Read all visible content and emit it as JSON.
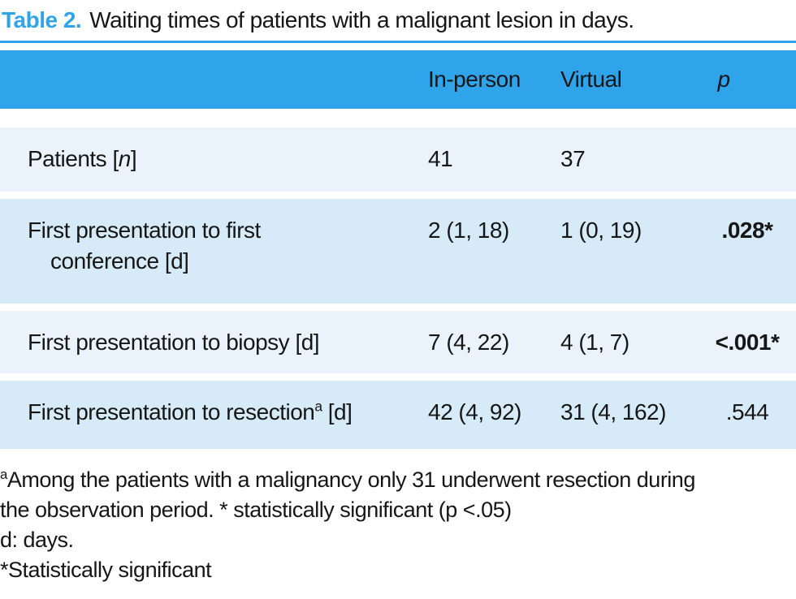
{
  "title": {
    "label": "Table 2.",
    "text": "Waiting times of patients with a malignant lesion in days."
  },
  "colors": {
    "accent_blue": "#2fa4ea",
    "row_light": "#eaf3fb",
    "row_dark": "#d6eaf7",
    "text": "#161616"
  },
  "table": {
    "columns": {
      "label": "",
      "in_person": "In-person",
      "virtual": "Virtual",
      "p": "p"
    },
    "rows": [
      {
        "label_pre": "Patients [",
        "label_italic": "n",
        "label_post": "]",
        "in_person": "41",
        "virtual": "37",
        "p": ""
      },
      {
        "label_line1": "First presentation to first",
        "label_line2": "conference [d]",
        "in_person": "2 (1, 18)",
        "virtual": "1 (0, 19)",
        "p": ".028*"
      },
      {
        "label": "First presentation to biopsy [d]",
        "in_person": "7 (4, 22)",
        "virtual": "4 (1, 7)",
        "p": "<.001*"
      },
      {
        "label_pre": "First presentation to resection",
        "label_sup": "a",
        "label_post": " [d]",
        "in_person": "42 (4, 92)",
        "virtual": "31 (4, 162)",
        "p": ".544"
      }
    ]
  },
  "footnotes": {
    "line1_sup": "a",
    "line1_text": "Among the patients with a malignancy only 31 underwent resection during",
    "line2": "the observation period. * statistically significant (p <.05)",
    "line3": "d: days.",
    "line4": "*Statistically significant"
  }
}
